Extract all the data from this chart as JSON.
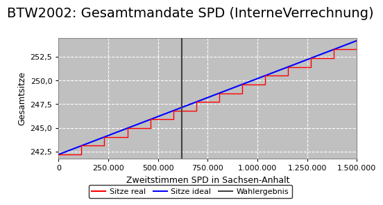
{
  "title": "BTW2002: Gesamtmandate SPD (InterneVerrechnung)",
  "xlabel": "Zweitstimmen SPD in Sachsen-Anhalt",
  "ylabel": "Gesamtsitze",
  "x_min": 0,
  "x_max": 1500000,
  "y_min": 241.8,
  "y_max": 254.5,
  "wahlergebnis_x": 620000,
  "ideal_y_start": 242.2,
  "ideal_y_end": 254.2,
  "step_start_y": 242.2,
  "step_end_y": 254.2,
  "n_steps": 13,
  "plot_bg_color": "#c0c0c0",
  "fig_bg_color": "#ffffff",
  "line_real_color": "#ff0000",
  "line_ideal_color": "#0000ff",
  "line_wahlergebnis_color": "#404040",
  "legend_labels": [
    "Sitze real",
    "Sitze ideal",
    "Wahlergebnis"
  ],
  "yticks": [
    242.5,
    245.0,
    247.5,
    250.0,
    252.5
  ],
  "xticks": [
    0,
    250000,
    500000,
    750000,
    1000000,
    1250000,
    1500000
  ],
  "title_fontsize": 14,
  "axis_fontsize": 9,
  "tick_fontsize": 8,
  "legend_fontsize": 8
}
